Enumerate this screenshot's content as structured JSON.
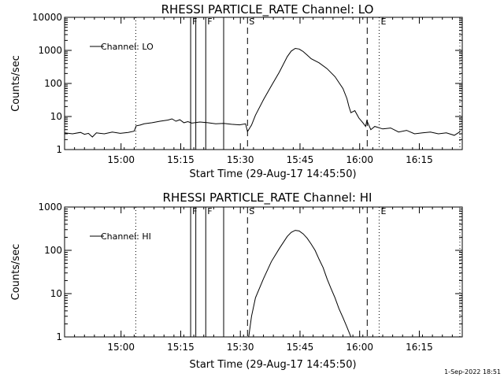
{
  "chart_data": [
    {
      "type": "line",
      "title": "RHESSI PARTICLE_RATE Channel: LO",
      "xlabel": "Start Time (29-Aug-17 14:45:50)",
      "ylabel": "Counts/sec",
      "yscale": "log",
      "xlim": [
        0,
        100
      ],
      "ylim": [
        1,
        10000
      ],
      "x_ticks": [
        {
          "value": 14.2,
          "label": "15:00"
        },
        {
          "value": 29.2,
          "label": "15:15"
        },
        {
          "value": 44.2,
          "label": "15:30"
        },
        {
          "value": 59.2,
          "label": "15:45"
        },
        {
          "value": 74.2,
          "label": "16:00"
        },
        {
          "value": 89.2,
          "label": "16:15"
        }
      ],
      "y_ticks": [
        {
          "value": 1,
          "label": "1"
        },
        {
          "value": 10,
          "label": "10"
        },
        {
          "value": 100,
          "label": "100"
        },
        {
          "value": 1000,
          "label": "1000"
        },
        {
          "value": 10000,
          "label": "10000"
        }
      ],
      "legend": {
        "position": "top-left",
        "entries": [
          "Channel: LO"
        ]
      },
      "markers": [
        {
          "x": 17.9,
          "style": "dotted",
          "label": ""
        },
        {
          "x": 31.7,
          "style": "solid",
          "label": "F"
        },
        {
          "x": 33.0,
          "style": "solid",
          "label": ""
        },
        {
          "x": 35.5,
          "style": "solid",
          "label": "F"
        },
        {
          "x": 40.0,
          "style": "solid",
          "label": ""
        },
        {
          "x": 46.0,
          "style": "dashed",
          "label": "S"
        },
        {
          "x": 76.1,
          "style": "dashed",
          "label": ""
        },
        {
          "x": 79.1,
          "style": "dotted",
          "label": "E"
        },
        {
          "x": 99.4,
          "style": "dotted",
          "label": ""
        }
      ],
      "series": [
        {
          "name": "Channel: LO",
          "x": [
            0,
            2,
            4,
            5,
            6,
            7,
            8,
            10,
            12,
            14,
            16,
            17.5,
            18,
            19,
            20,
            22,
            24,
            26,
            27,
            28,
            29,
            30,
            31,
            32,
            34,
            36,
            38,
            40,
            42,
            44,
            45.5,
            46,
            47,
            48,
            50,
            52,
            54,
            56,
            57,
            58,
            59,
            60,
            61,
            62,
            64,
            66,
            68,
            70,
            71,
            71.5,
            72,
            73,
            74,
            75,
            75.7,
            76,
            77,
            78,
            80,
            82,
            84,
            86,
            88,
            90,
            92,
            94,
            96,
            98,
            99.5
          ],
          "y": [
            3.2,
            3.0,
            3.3,
            2.9,
            3.1,
            2.4,
            3.2,
            3.0,
            3.4,
            3.1,
            3.3,
            3.6,
            5.2,
            5.5,
            6.0,
            6.5,
            7.2,
            7.8,
            8.5,
            7.2,
            8.0,
            6.5,
            7.0,
            6.3,
            6.8,
            6.5,
            6.0,
            6.2,
            5.8,
            5.6,
            6.0,
            3.5,
            5.5,
            11,
            32,
            85,
            220,
            650,
            950,
            1150,
            1100,
            920,
            720,
            560,
            420,
            280,
            160,
            70,
            35,
            20,
            13,
            15,
            9,
            6.5,
            5.0,
            7.5,
            4.0,
            5.0,
            4.2,
            4.5,
            3.4,
            3.8,
            3.0,
            3.2,
            3.4,
            3.0,
            3.2,
            2.7,
            3.5
          ]
        }
      ]
    },
    {
      "type": "line",
      "title": "RHESSI PARTICLE_RATE Channel: HI",
      "xlabel": "Start Time (29-Aug-17 14:45:50)",
      "ylabel": "Counts/sec",
      "yscale": "log",
      "xlim": [
        0,
        100
      ],
      "ylim": [
        1,
        1000
      ],
      "x_ticks": [
        {
          "value": 14.2,
          "label": "15:00"
        },
        {
          "value": 29.2,
          "label": "15:15"
        },
        {
          "value": 44.2,
          "label": "15:30"
        },
        {
          "value": 59.2,
          "label": "15:45"
        },
        {
          "value": 74.2,
          "label": "16:00"
        },
        {
          "value": 89.2,
          "label": "16:15"
        }
      ],
      "y_ticks": [
        {
          "value": 1,
          "label": "1"
        },
        {
          "value": 10,
          "label": "10"
        },
        {
          "value": 100,
          "label": "100"
        },
        {
          "value": 1000,
          "label": "1000"
        }
      ],
      "legend": {
        "position": "top-left",
        "entries": [
          "Channel: HI"
        ]
      },
      "markers": [
        {
          "x": 17.9,
          "style": "dotted",
          "label": ""
        },
        {
          "x": 31.7,
          "style": "solid",
          "label": "F"
        },
        {
          "x": 33.0,
          "style": "solid",
          "label": ""
        },
        {
          "x": 35.5,
          "style": "solid",
          "label": "F"
        },
        {
          "x": 40.0,
          "style": "solid",
          "label": ""
        },
        {
          "x": 46.0,
          "style": "dashed",
          "label": "S"
        },
        {
          "x": 76.1,
          "style": "dashed",
          "label": ""
        },
        {
          "x": 79.1,
          "style": "dotted",
          "label": "E"
        },
        {
          "x": 99.4,
          "style": "dotted",
          "label": ""
        }
      ],
      "series": [
        {
          "name": "Channel: HI",
          "x": [
            46.3,
            47,
            48,
            50,
            52,
            54,
            56,
            57,
            58,
            59,
            60,
            61,
            62,
            63,
            64,
            65,
            66,
            67,
            68,
            69,
            70,
            71,
            72
          ],
          "y": [
            1,
            3,
            8,
            22,
            55,
            110,
            210,
            260,
            290,
            280,
            240,
            190,
            140,
            100,
            62,
            40,
            22,
            13,
            8,
            4.5,
            2.8,
            1.7,
            1
          ]
        }
      ]
    }
  ],
  "footer_timestamp": "1-Sep-2022 18:51"
}
